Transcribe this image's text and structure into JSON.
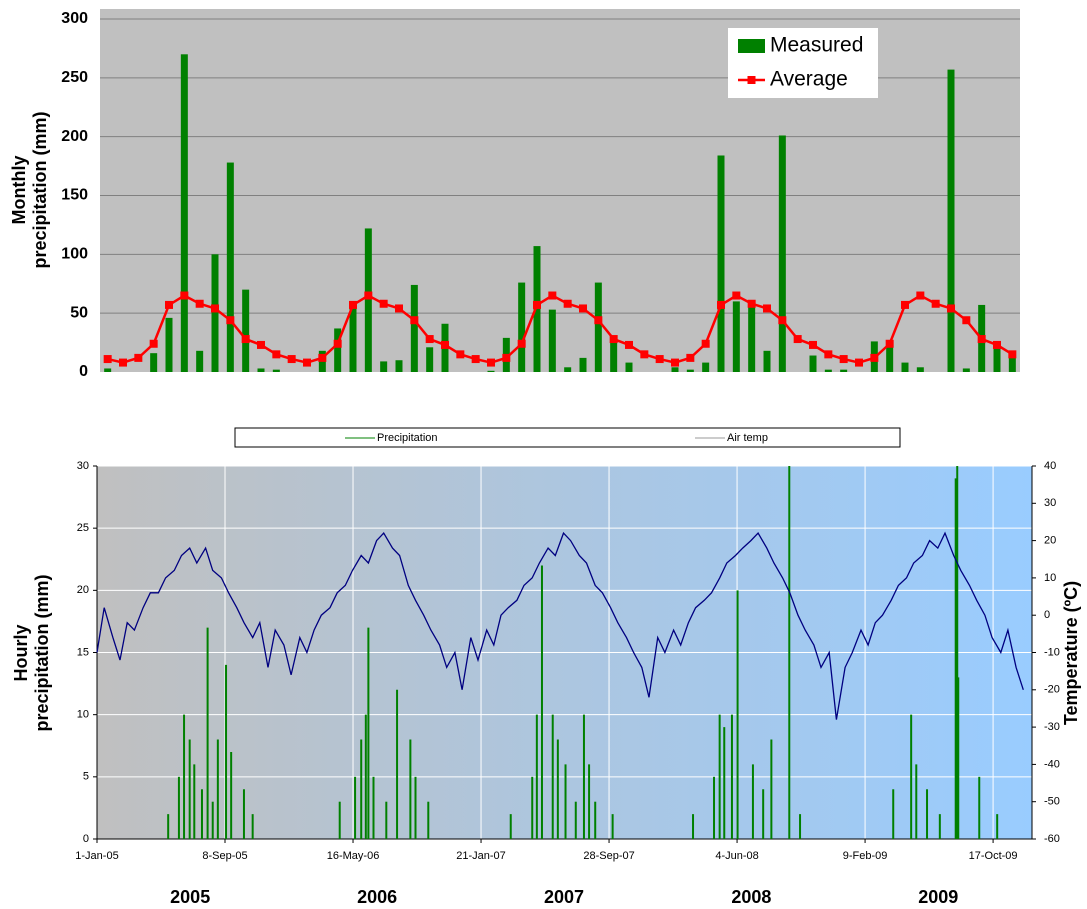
{
  "chart_data": [
    {
      "type": "bar",
      "ylabel": [
        "Monthly",
        "precipitation (mm)"
      ],
      "categories": [
        null,
        null,
        null,
        null,
        null,
        null,
        null,
        null,
        null,
        null,
        null,
        null,
        null,
        null,
        null,
        null,
        null,
        null,
        null,
        null,
        null,
        null,
        null,
        null,
        null,
        null,
        null,
        null,
        null,
        null,
        null,
        null,
        null,
        null,
        null,
        null,
        null,
        null,
        null,
        null,
        null,
        null,
        null,
        null,
        null,
        null,
        null,
        null,
        null,
        null,
        null,
        null,
        null,
        null,
        null,
        null,
        null,
        null,
        null,
        null
      ],
      "series": [
        {
          "name": "Measured",
          "type": "bar",
          "color": "#008000",
          "values": [
            3,
            0,
            0,
            16,
            46,
            270,
            18,
            100,
            178,
            70,
            3,
            2,
            0,
            0,
            18,
            37,
            57,
            122,
            9,
            10,
            74,
            21,
            41,
            0,
            0,
            1,
            29,
            76,
            107,
            53,
            4,
            12,
            76,
            28,
            8,
            0,
            0,
            4,
            2,
            8,
            184,
            60,
            55,
            18,
            201,
            0,
            14,
            2,
            2,
            0,
            26,
            27,
            8,
            4,
            0,
            257,
            3,
            57,
            26,
            12
          ]
        },
        {
          "name": "Average",
          "type": "line",
          "color": "#ff0000",
          "values": [
            11,
            8,
            12,
            24,
            57,
            65,
            58,
            54,
            44,
            28,
            23,
            15,
            11,
            8,
            12,
            24,
            57,
            65,
            58,
            54,
            44,
            28,
            23,
            15,
            11,
            8,
            12,
            24,
            57,
            65,
            58,
            54,
            44,
            28,
            23,
            15,
            11,
            8,
            12,
            24,
            57,
            65,
            58,
            54,
            44,
            28,
            23,
            15,
            11,
            8,
            12,
            24,
            57,
            65,
            58,
            54,
            44,
            28,
            23,
            15
          ]
        }
      ],
      "ylim": [
        0,
        300
      ],
      "yticks": [
        0,
        50,
        100,
        150,
        200,
        250,
        300
      ],
      "grid": true,
      "legend": "top-right"
    },
    {
      "type": "line",
      "ylabel": [
        "Hourly",
        "precipitation (mm)"
      ],
      "y2label": "Temperature (ºC)",
      "annotations": [
        "2005",
        "2006",
        "2007",
        "2008",
        "2009"
      ],
      "xlim": [
        "2005-01-01",
        "2010-01-01"
      ],
      "xticks": [
        {
          "value": "2005-01-01",
          "label": "1-Jan-05"
        },
        {
          "value": "2005-09-08",
          "label": "8-Sep-05"
        },
        {
          "value": "2006-05-16",
          "label": "16-May-06"
        },
        {
          "value": "2007-01-21",
          "label": "21-Jan-07"
        },
        {
          "value": "2007-09-28",
          "label": "28-Sep-07"
        },
        {
          "value": "2008-06-04",
          "label": "4-Jun-08"
        },
        {
          "value": "2009-02-09",
          "label": "9-Feb-09"
        },
        {
          "value": "2009-10-17",
          "label": "17-Oct-09"
        }
      ],
      "ylim": [
        0,
        30
      ],
      "yticks": [
        0,
        5,
        10,
        15,
        20,
        25,
        30
      ],
      "y2lim": [
        -60,
        40
      ],
      "y2ticks": [
        -60,
        -50,
        -40,
        -30,
        -20,
        -10,
        0,
        10,
        20,
        30,
        40
      ],
      "grid": true,
      "legend": "top",
      "series": [
        {
          "name": "Precipitation",
          "type": "bar",
          "color": "#008000",
          "x": [
            "2005-05-20",
            "2005-06-10",
            "2005-06-20",
            "2005-07-01",
            "2005-07-10",
            "2005-07-25",
            "2005-08-05",
            "2005-08-15",
            "2005-08-25",
            "2005-09-10",
            "2005-09-20",
            "2005-10-15",
            "2005-11-01",
            "2006-04-20",
            "2006-05-20",
            "2006-06-01",
            "2006-06-10",
            "2006-06-15",
            "2006-06-25",
            "2006-07-20",
            "2006-08-10",
            "2006-09-05",
            "2006-09-15",
            "2006-10-10",
            "2007-03-20",
            "2007-05-01",
            "2007-05-10",
            "2007-05-20",
            "2007-06-10",
            "2007-06-20",
            "2007-07-05",
            "2007-07-25",
            "2007-08-10",
            "2007-08-20",
            "2007-09-01",
            "2007-10-05",
            "2008-03-10",
            "2008-04-20",
            "2008-05-01",
            "2008-05-10",
            "2008-05-25",
            "2008-06-05",
            "2008-07-05",
            "2008-07-25",
            "2008-08-10",
            "2008-09-14",
            "2008-10-05",
            "2009-04-05",
            "2009-05-10",
            "2009-05-20",
            "2009-06-10",
            "2009-07-05",
            "2009-08-05",
            "2009-08-08",
            "2009-08-10",
            "2009-09-20",
            "2009-10-25"
          ],
          "values": [
            2,
            5,
            10,
            8,
            6,
            4,
            17,
            3,
            8,
            14,
            7,
            4,
            2,
            3,
            5,
            8,
            10,
            17,
            5,
            3,
            12,
            8,
            5,
            3,
            2,
            5,
            10,
            22,
            10,
            8,
            6,
            3,
            10,
            6,
            3,
            2,
            2,
            5,
            10,
            9,
            10,
            20,
            6,
            4,
            8,
            30,
            2,
            4,
            10,
            6,
            4,
            2,
            29,
            30,
            13,
            5,
            2
          ]
        },
        {
          "name": "Air temp",
          "type": "line",
          "color": "#000080",
          "axis": "y2",
          "x": [
            "2005-01-01",
            "2005-01-15",
            "2005-02-01",
            "2005-02-15",
            "2005-03-01",
            "2005-03-15",
            "2005-04-01",
            "2005-04-15",
            "2005-05-01",
            "2005-05-15",
            "2005-06-01",
            "2005-06-15",
            "2005-07-01",
            "2005-07-15",
            "2005-08-01",
            "2005-08-15",
            "2005-09-01",
            "2005-09-15",
            "2005-10-01",
            "2005-10-15",
            "2005-11-01",
            "2005-11-15",
            "2005-12-01",
            "2005-12-15",
            "2006-01-01",
            "2006-01-15",
            "2006-02-01",
            "2006-02-15",
            "2006-03-01",
            "2006-03-15",
            "2006-04-01",
            "2006-04-15",
            "2006-05-01",
            "2006-05-15",
            "2006-06-01",
            "2006-06-15",
            "2006-07-01",
            "2006-07-15",
            "2006-08-01",
            "2006-08-15",
            "2006-09-01",
            "2006-09-15",
            "2006-10-01",
            "2006-10-15",
            "2006-11-01",
            "2006-11-15",
            "2006-12-01",
            "2006-12-15",
            "2007-01-01",
            "2007-01-15",
            "2007-02-01",
            "2007-02-15",
            "2007-03-01",
            "2007-03-15",
            "2007-04-01",
            "2007-04-15",
            "2007-05-01",
            "2007-05-15",
            "2007-06-01",
            "2007-06-15",
            "2007-07-01",
            "2007-07-15",
            "2007-08-01",
            "2007-08-15",
            "2007-09-01",
            "2007-09-15",
            "2007-10-01",
            "2007-10-15",
            "2007-11-01",
            "2007-11-15",
            "2007-12-01",
            "2007-12-15",
            "2008-01-01",
            "2008-01-15",
            "2008-02-01",
            "2008-02-15",
            "2008-03-01",
            "2008-03-15",
            "2008-04-01",
            "2008-04-15",
            "2008-05-01",
            "2008-05-15",
            "2008-06-01",
            "2008-06-15",
            "2008-07-01",
            "2008-07-15",
            "2008-08-01",
            "2008-08-15",
            "2008-09-01",
            "2008-09-15",
            "2008-10-01",
            "2008-10-15",
            "2008-11-01",
            "2008-11-15",
            "2008-12-01",
            "2008-12-15",
            "2009-01-01",
            "2009-01-15",
            "2009-02-01",
            "2009-02-15",
            "2009-03-01",
            "2009-03-15",
            "2009-04-01",
            "2009-04-15",
            "2009-05-01",
            "2009-05-15",
            "2009-06-01",
            "2009-06-15",
            "2009-07-01",
            "2009-07-15",
            "2009-08-01",
            "2009-08-15",
            "2009-09-01",
            "2009-09-15",
            "2009-10-01",
            "2009-10-15",
            "2009-11-01",
            "2009-11-15",
            "2009-12-01",
            "2009-12-15"
          ],
          "values": [
            -10,
            2,
            -6,
            -12,
            -2,
            -4,
            2,
            6,
            6,
            10,
            12,
            16,
            18,
            14,
            18,
            12,
            10,
            6,
            2,
            -2,
            -6,
            -2,
            -14,
            -4,
            -8,
            -16,
            -6,
            -10,
            -4,
            0,
            2,
            6,
            8,
            12,
            16,
            14,
            20,
            22,
            18,
            16,
            8,
            4,
            0,
            -4,
            -8,
            -14,
            -10,
            -20,
            -6,
            -12,
            -4,
            -8,
            0,
            2,
            4,
            8,
            10,
            14,
            18,
            16,
            22,
            20,
            16,
            14,
            8,
            6,
            2,
            -2,
            -6,
            -10,
            -14,
            -22,
            -6,
            -10,
            -4,
            -8,
            -2,
            2,
            4,
            6,
            10,
            14,
            16,
            18,
            20,
            22,
            18,
            14,
            10,
            6,
            0,
            -4,
            -8,
            -14,
            -10,
            -28,
            -14,
            -10,
            -4,
            -8,
            -2,
            0,
            4,
            8,
            10,
            14,
            16,
            20,
            18,
            22,
            16,
            12,
            8,
            4,
            0,
            -6,
            -10,
            -4,
            -14,
            -20
          ]
        }
      ]
    }
  ]
}
